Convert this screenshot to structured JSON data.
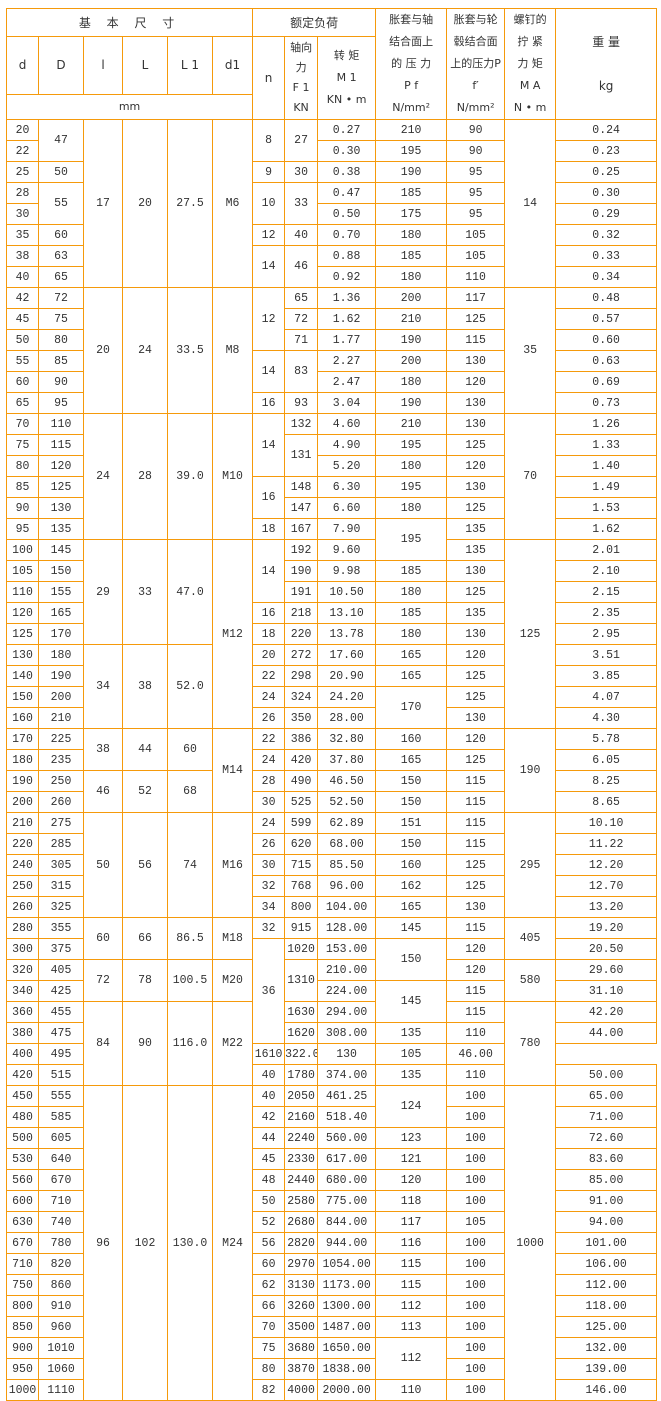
{
  "header": {
    "basic_dims": "基 本 尺 寸",
    "rated_load": "额定负荷",
    "pf_col": "胀套与轴\n结合面上\n的 压 力\nP f\nN/mm²",
    "f_col": "胀套与轮\n毂结合面\n上的压力P\nf′\nN/mm²",
    "ma_col": "螺钉的\n拧  紧\n力  矩\nM A\nN • m",
    "weight_col": "重  量\n\nkg",
    "d": "d",
    "D": "D",
    "l": "l",
    "L": "L",
    "L1": "L 1",
    "d1": "d1",
    "n": "n",
    "axial_col": "轴向\n力\nF 1\nKN",
    "torque_col": "转 矩\nM 1\nKN • m",
    "mm": "mm"
  },
  "colors": {
    "border": "#f59a0b",
    "text": "#333333"
  },
  "rows": [
    [
      "20",
      [
        "47",
        2
      ],
      [
        "17",
        8
      ],
      [
        "20",
        8
      ],
      [
        "27.5",
        8
      ],
      [
        "M6",
        8
      ],
      [
        "8",
        2
      ],
      [
        "27",
        2
      ],
      "0.27",
      "210",
      "90",
      [
        "14",
        8
      ],
      "0.24"
    ],
    [
      "22",
      "0.30",
      "195",
      "90",
      "0.23"
    ],
    [
      "25",
      "50",
      "9",
      "30",
      "0.38",
      "190",
      "95",
      "0.25"
    ],
    [
      "28",
      [
        "55",
        2
      ],
      [
        "10",
        2
      ],
      [
        "33",
        2
      ],
      "0.47",
      "185",
      "95",
      "0.30"
    ],
    [
      "30",
      "0.50",
      "175",
      "95",
      "0.29"
    ],
    [
      "35",
      "60",
      "12",
      "40",
      "0.70",
      "180",
      "105",
      "0.32"
    ],
    [
      "38",
      "63",
      [
        "14",
        2
      ],
      [
        "46",
        2
      ],
      "0.88",
      "185",
      "105",
      "0.33"
    ],
    [
      "40",
      "65",
      "0.92",
      "180",
      "110",
      "0.34"
    ],
    [
      "42",
      "72",
      [
        "20",
        6
      ],
      [
        "24",
        6
      ],
      [
        "33.5",
        6
      ],
      [
        "M8",
        6
      ],
      [
        "12",
        3
      ],
      "65",
      "1.36",
      "200",
      "117",
      [
        "35",
        6
      ],
      "0.48"
    ],
    [
      "45",
      "75",
      "72",
      "1.62",
      "210",
      "125",
      "0.57"
    ],
    [
      "50",
      "80",
      "71",
      "1.77",
      "190",
      "115",
      "0.60"
    ],
    [
      "55",
      "85",
      [
        "14",
        2
      ],
      [
        "83",
        2
      ],
      "2.27",
      "200",
      "130",
      "0.63"
    ],
    [
      "60",
      "90",
      "2.47",
      "180",
      "120",
      "0.69"
    ],
    [
      "65",
      "95",
      "16",
      "93",
      "3.04",
      "190",
      "130",
      "0.73"
    ],
    [
      "70",
      "110",
      [
        "24",
        6
      ],
      [
        "28",
        6
      ],
      [
        "39.0",
        6
      ],
      [
        "M10",
        6
      ],
      [
        "14",
        3
      ],
      "132",
      "4.60",
      "210",
      "130",
      [
        "70",
        6
      ],
      "1.26"
    ],
    [
      "75",
      "115",
      [
        "131",
        2
      ],
      "4.90",
      "195",
      "125",
      "1.33"
    ],
    [
      "80",
      "120",
      "5.20",
      "180",
      "120",
      "1.40"
    ],
    [
      "85",
      "125",
      [
        "16",
        2
      ],
      "148",
      "6.30",
      "195",
      "130",
      "1.49"
    ],
    [
      "90",
      "130",
      "147",
      "6.60",
      "180",
      "125",
      "1.53"
    ],
    [
      "95",
      "135",
      "18",
      "167",
      "7.90",
      [
        "195",
        2
      ],
      "135",
      "1.62"
    ],
    [
      "100",
      "145",
      [
        "29",
        5
      ],
      [
        "33",
        5
      ],
      [
        "47.0",
        5
      ],
      [
        "M12",
        9
      ],
      [
        "14",
        3
      ],
      "192",
      "9.60",
      "135",
      [
        "125",
        9
      ],
      "2.01"
    ],
    [
      "105",
      "150",
      "190",
      "9.98",
      "185",
      "130",
      "2.10"
    ],
    [
      "110",
      "155",
      "191",
      "10.50",
      "180",
      "125",
      "2.15"
    ],
    [
      "120",
      "165",
      "16",
      "218",
      "13.10",
      "185",
      "135",
      "2.35"
    ],
    [
      "125",
      "170",
      "18",
      "220",
      "13.78",
      "180",
      "130",
      "2.95"
    ],
    [
      "130",
      "180",
      [
        "34",
        4
      ],
      [
        "38",
        4
      ],
      [
        "52.0",
        4
      ],
      "20",
      "272",
      "17.60",
      "165",
      "120",
      "3.51"
    ],
    [
      "140",
      "190",
      "22",
      "298",
      "20.90",
      "165",
      "125",
      "3.85"
    ],
    [
      "150",
      "200",
      "24",
      "324",
      "24.20",
      [
        "170",
        2
      ],
      "125",
      "4.07"
    ],
    [
      "160",
      "210",
      "26",
      "350",
      "28.00",
      "130",
      "4.30"
    ],
    [
      "170",
      "225",
      [
        "38",
        2
      ],
      [
        "44",
        2
      ],
      [
        "60",
        2
      ],
      [
        "M14",
        4
      ],
      "22",
      "386",
      "32.80",
      "160",
      "120",
      [
        "190",
        4
      ],
      "5.78"
    ],
    [
      "180",
      "235",
      "24",
      "420",
      "37.80",
      "165",
      "125",
      "6.05"
    ],
    [
      "190",
      "250",
      [
        "46",
        2
      ],
      [
        "52",
        2
      ],
      [
        "68",
        2
      ],
      "28",
      "490",
      "46.50",
      "150",
      "115",
      "8.25"
    ],
    [
      "200",
      "260",
      "30",
      "525",
      "52.50",
      "150",
      "115",
      "8.65"
    ],
    [
      "210",
      "275",
      [
        "50",
        5
      ],
      [
        "56",
        5
      ],
      [
        "74",
        5
      ],
      [
        "M16",
        5
      ],
      "24",
      "599",
      "62.89",
      "151",
      "115",
      [
        "295",
        5
      ],
      "10.10"
    ],
    [
      "220",
      "285",
      "26",
      "620",
      "68.00",
      "150",
      "115",
      "11.22"
    ],
    [
      "240",
      "305",
      "30",
      "715",
      "85.50",
      "160",
      "125",
      "12.20"
    ],
    [
      "250",
      "315",
      "32",
      "768",
      "96.00",
      "162",
      "125",
      "12.70"
    ],
    [
      "260",
      "325",
      "34",
      "800",
      "104.00",
      "165",
      "130",
      "13.20"
    ],
    [
      "280",
      "355",
      [
        "60",
        2
      ],
      [
        "66",
        2
      ],
      [
        "86.5",
        2
      ],
      [
        "M18",
        2
      ],
      "32",
      "915",
      "128.00",
      "145",
      "115",
      [
        "405",
        2
      ],
      "19.20"
    ],
    [
      "300",
      "375",
      [
        "36",
        5
      ],
      "1020",
      "153.00",
      [
        "150",
        2
      ],
      "120",
      "20.50"
    ],
    [
      "320",
      "405",
      [
        "72",
        2
      ],
      [
        "78",
        2
      ],
      [
        "100.5",
        2
      ],
      [
        "M20",
        2
      ],
      [
        "1310",
        2
      ],
      "210.00",
      "120",
      [
        "580",
        2
      ],
      "29.60"
    ],
    [
      "340",
      "425",
      "224.00",
      [
        "145",
        2
      ],
      "115",
      "31.10"
    ],
    [
      "360",
      "455",
      [
        "84",
        4
      ],
      [
        "90",
        4
      ],
      [
        "116.0",
        4
      ],
      [
        "M22",
        4
      ],
      "1630",
      "294.00",
      "115",
      [
        "780",
        4
      ],
      "42.20"
    ],
    [
      "380",
      "475",
      "1620",
      "308.00",
      "135",
      "110",
      "44.00"
    ],
    [
      "400",
      "495",
      "1610",
      "322.00",
      "130",
      "105",
      "46.00"
    ],
    [
      "420",
      "515",
      "40",
      "1780",
      "374.00",
      "135",
      "110",
      "50.00"
    ],
    [
      "450",
      "555",
      [
        "96",
        15
      ],
      [
        "102",
        15
      ],
      [
        "130.0",
        15
      ],
      [
        "M24",
        15
      ],
      "40",
      "2050",
      "461.25",
      [
        "124",
        2
      ],
      "100",
      [
        "1000",
        15
      ],
      "65.00"
    ],
    [
      "480",
      "585",
      "42",
      "2160",
      "518.40",
      "100",
      "71.00"
    ],
    [
      "500",
      "605",
      "44",
      "2240",
      "560.00",
      "123",
      "100",
      "72.60"
    ],
    [
      "530",
      "640",
      "45",
      "2330",
      "617.00",
      "121",
      "100",
      "83.60"
    ],
    [
      "560",
      "670",
      "48",
      "2440",
      "680.00",
      "120",
      "100",
      "85.00"
    ],
    [
      "600",
      "710",
      "50",
      "2580",
      "775.00",
      "118",
      "100",
      "91.00"
    ],
    [
      "630",
      "740",
      "52",
      "2680",
      "844.00",
      "117",
      "105",
      "94.00"
    ],
    [
      "670",
      "780",
      "56",
      "2820",
      "944.00",
      "116",
      "100",
      "101.00"
    ],
    [
      "710",
      "820",
      "60",
      "2970",
      "1054.00",
      "115",
      "100",
      "106.00"
    ],
    [
      "750",
      "860",
      "62",
      "3130",
      "1173.00",
      "115",
      "100",
      "112.00"
    ],
    [
      "800",
      "910",
      "66",
      "3260",
      "1300.00",
      "112",
      "100",
      "118.00"
    ],
    [
      "850",
      "960",
      "70",
      "3500",
      "1487.00",
      "113",
      "100",
      "125.00"
    ],
    [
      "900",
      "1010",
      "75",
      "3680",
      "1650.00",
      [
        "112",
        2
      ],
      "100",
      "132.00"
    ],
    [
      "950",
      "1060",
      "80",
      "3870",
      "1838.00",
      "100",
      "139.00"
    ],
    [
      "1000",
      "1110",
      "82",
      "4000",
      "2000.00",
      "110",
      "100",
      "146.00"
    ]
  ]
}
